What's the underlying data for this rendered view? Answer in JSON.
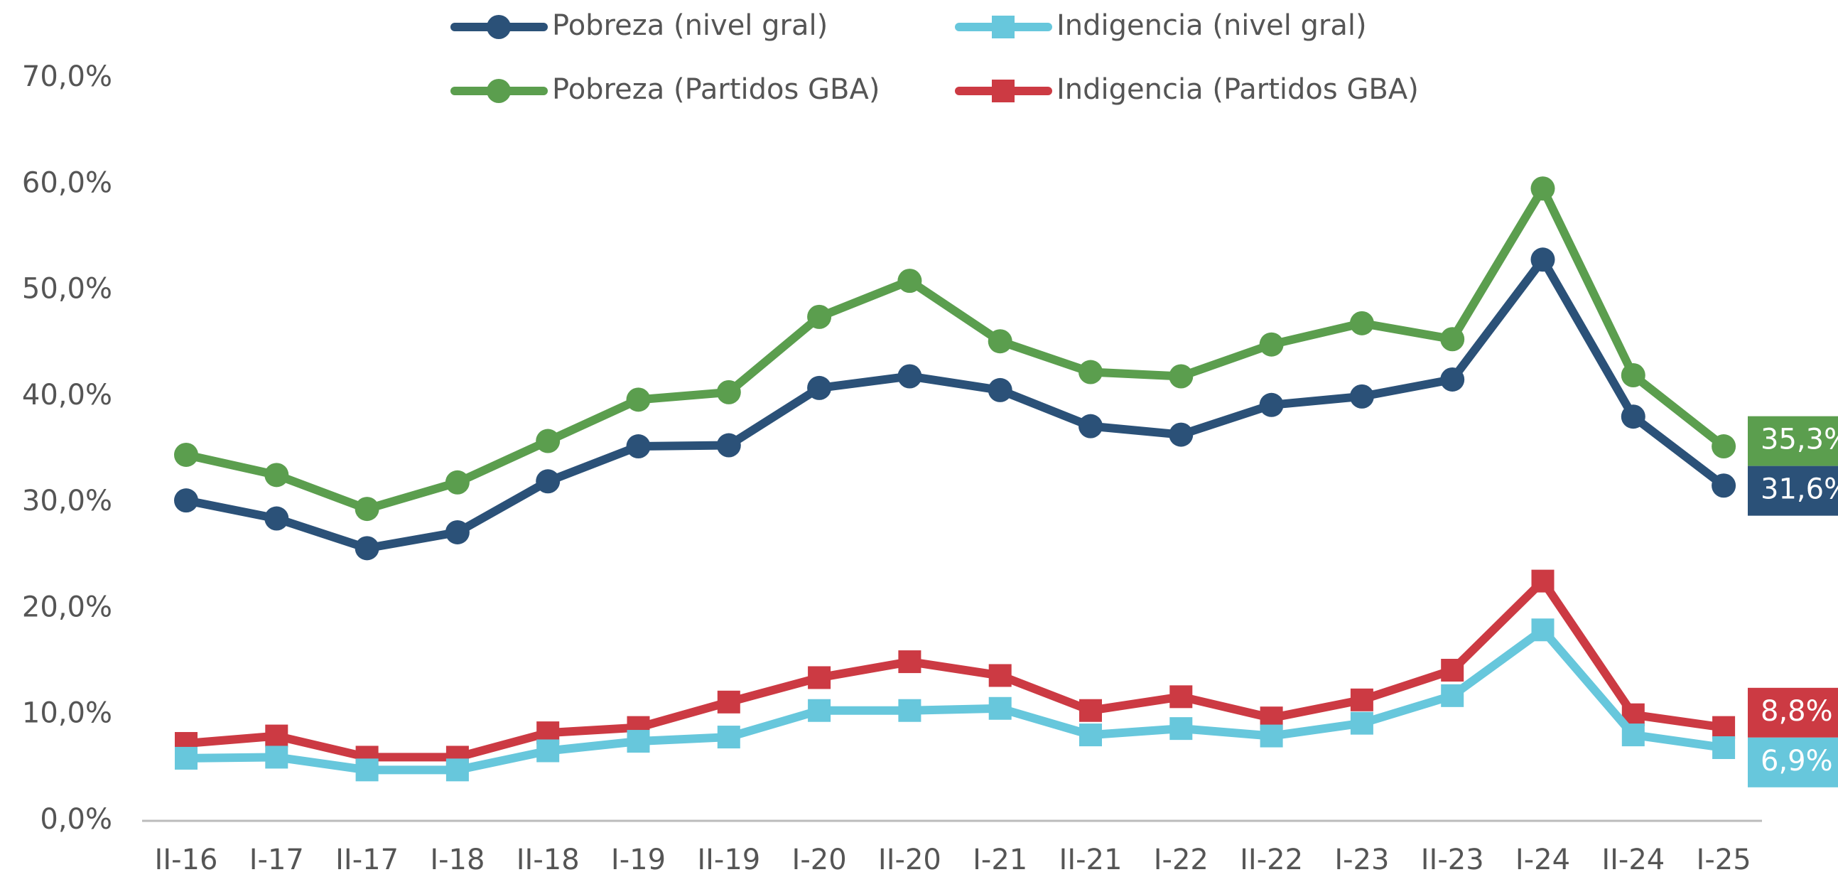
{
  "chart_data": {
    "type": "line",
    "categories": [
      "II-16",
      "I-17",
      "II-17",
      "I-18",
      "II-18",
      "I-19",
      "II-19",
      "I-20",
      "II-20",
      "I-21",
      "II-21",
      "I-22",
      "II-22",
      "I-23",
      "II-23",
      "I-24",
      "II-24",
      "I-25"
    ],
    "series": [
      {
        "name": "Pobreza (nivel gral)",
        "color": "#2b5178",
        "marker": "circle",
        "values": [
          30.2,
          28.5,
          25.7,
          27.2,
          32.0,
          35.3,
          35.4,
          40.8,
          41.9,
          40.6,
          37.2,
          36.4,
          39.2,
          40.0,
          41.6,
          52.9,
          38.1,
          31.6
        ],
        "value_labels": [
          null,
          null,
          null,
          null,
          null,
          null,
          null,
          null,
          null,
          null,
          null,
          null,
          null,
          null,
          null,
          null,
          null,
          "31,6%"
        ]
      },
      {
        "name": "Indigencia (nivel gral)",
        "color": "#67c7dc",
        "marker": "square",
        "values": [
          5.9,
          6.0,
          4.8,
          4.8,
          6.6,
          7.5,
          7.9,
          10.4,
          10.4,
          10.6,
          8.1,
          8.7,
          8.0,
          9.2,
          11.8,
          18.0,
          8.1,
          6.9
        ],
        "value_labels": [
          null,
          null,
          null,
          null,
          null,
          null,
          null,
          null,
          null,
          null,
          null,
          null,
          null,
          null,
          null,
          null,
          null,
          "6,9%"
        ]
      },
      {
        "name": "Pobreza (Partidos GBA)",
        "color": "#5b9e4e",
        "marker": "circle",
        "values": [
          34.5,
          32.6,
          29.4,
          31.9,
          35.8,
          39.7,
          40.4,
          47.5,
          50.9,
          45.2,
          42.3,
          41.9,
          44.9,
          46.9,
          45.4,
          59.6,
          42.0,
          35.3
        ],
        "value_labels": [
          null,
          null,
          null,
          null,
          null,
          null,
          null,
          null,
          null,
          null,
          null,
          null,
          null,
          null,
          null,
          null,
          null,
          "35,3%"
        ]
      },
      {
        "name": "Indigencia (Partidos GBA)",
        "color": "#cc3a43",
        "marker": "square",
        "values": [
          7.3,
          8.0,
          6.0,
          6.0,
          8.3,
          8.8,
          11.2,
          13.5,
          15.0,
          13.7,
          10.4,
          11.7,
          9.7,
          11.4,
          14.2,
          22.6,
          10.0,
          8.8
        ],
        "value_labels": [
          null,
          null,
          null,
          null,
          null,
          null,
          null,
          null,
          null,
          null,
          null,
          null,
          null,
          null,
          null,
          null,
          null,
          "8,8%"
        ]
      }
    ],
    "ylim": [
      0,
      70
    ],
    "yticks": [
      {
        "value": 0,
        "label": "0,0%"
      },
      {
        "value": 10,
        "label": "10,0%"
      },
      {
        "value": 20,
        "label": "20,0%"
      },
      {
        "value": 30,
        "label": "30,0%"
      },
      {
        "value": 40,
        "label": "40,0%"
      },
      {
        "value": 50,
        "label": "50,0%"
      },
      {
        "value": 60,
        "label": "60,0%"
      },
      {
        "value": 70,
        "label": "70,0%"
      }
    ],
    "grid": false,
    "legend": "top"
  }
}
